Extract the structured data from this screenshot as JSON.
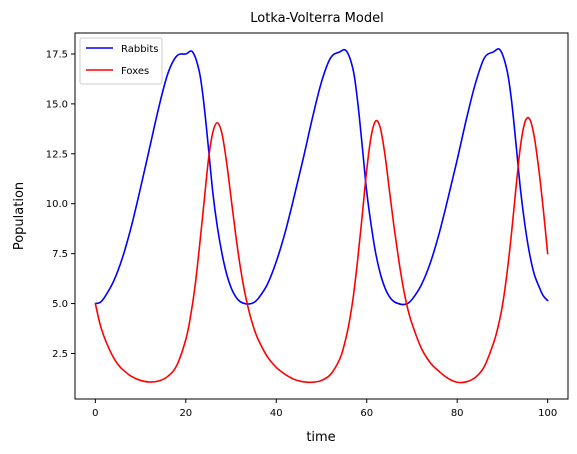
{
  "chart_data": {
    "type": "line",
    "title": "Lotka-Volterra Model",
    "xlabel": "time",
    "ylabel": "Population",
    "xlim": [
      -4.5,
      104.5
    ],
    "ylim": [
      0.22,
      18.55
    ],
    "xticks": [
      0,
      20,
      40,
      60,
      80,
      100
    ],
    "xtick_labels": [
      "0",
      "20",
      "40",
      "60",
      "80",
      "100"
    ],
    "yticks": [
      2.5,
      5.0,
      7.5,
      10.0,
      12.5,
      15.0,
      17.5
    ],
    "ytick_labels": [
      "2.5",
      "5.0",
      "7.5",
      "10.0",
      "12.5",
      "15.0",
      "17.5"
    ],
    "grid": false,
    "legend_position": "top-left",
    "series": [
      {
        "name": "Rabbits",
        "color": "#0000ff",
        "x": [
          0,
          1,
          2,
          4,
          6,
          8,
          10,
          12,
          14,
          16,
          18,
          20,
          21.5,
          23,
          24,
          25,
          26,
          27,
          28,
          29,
          30,
          31,
          32,
          33,
          34,
          35,
          36,
          38,
          40,
          42,
          44,
          46,
          48,
          50,
          52,
          54,
          55.5,
          57,
          58,
          59,
          60,
          61,
          62,
          63,
          64,
          65,
          66,
          67,
          68,
          69,
          70,
          72,
          74,
          76,
          78,
          80,
          82,
          84,
          86,
          88,
          89.5,
          91,
          92,
          93,
          94,
          95,
          96,
          97,
          98,
          99,
          100
        ],
        "y": [
          5.0,
          5.05,
          5.3,
          6.1,
          7.3,
          8.9,
          10.8,
          12.8,
          14.8,
          16.5,
          17.4,
          17.5,
          17.6,
          16.6,
          15.0,
          12.8,
          10.5,
          8.8,
          7.5,
          6.5,
          5.8,
          5.35,
          5.1,
          5.0,
          4.98,
          5.05,
          5.25,
          5.95,
          7.1,
          8.6,
          10.4,
          12.3,
          14.3,
          16.1,
          17.3,
          17.6,
          17.65,
          16.7,
          15.1,
          12.9,
          10.6,
          8.9,
          7.5,
          6.5,
          5.8,
          5.35,
          5.1,
          5.0,
          4.95,
          5.0,
          5.2,
          5.9,
          7.0,
          8.5,
          10.3,
          12.2,
          14.2,
          16.0,
          17.3,
          17.6,
          17.7,
          16.7,
          15.2,
          13.0,
          10.7,
          8.9,
          7.5,
          6.5,
          5.9,
          5.4,
          5.15
        ]
      },
      {
        "name": "Foxes",
        "color": "#ff0000",
        "x": [
          0,
          1,
          2,
          3,
          4,
          5,
          6,
          8,
          10,
          12,
          14,
          16,
          18,
          20,
          21,
          22,
          23,
          24,
          25,
          26,
          27,
          28,
          29,
          30,
          31,
          32,
          33,
          34,
          35,
          36,
          38,
          40,
          42,
          44,
          46,
          48,
          50,
          52,
          54,
          55,
          56,
          57,
          58,
          59,
          60,
          61,
          62,
          63,
          64,
          65,
          66,
          67,
          68,
          69,
          70,
          72,
          74,
          76,
          78,
          80,
          82,
          84,
          86,
          88,
          89,
          90,
          91,
          92,
          93,
          94,
          95,
          96,
          97,
          98,
          99,
          100
        ],
        "y": [
          5.0,
          4.0,
          3.3,
          2.75,
          2.3,
          1.95,
          1.7,
          1.35,
          1.15,
          1.07,
          1.12,
          1.35,
          1.9,
          3.2,
          4.3,
          5.8,
          7.8,
          10.0,
          12.2,
          13.6,
          14.05,
          13.5,
          12.1,
          10.3,
          8.5,
          6.9,
          5.6,
          4.6,
          3.8,
          3.2,
          2.35,
          1.8,
          1.45,
          1.2,
          1.08,
          1.06,
          1.15,
          1.45,
          2.2,
          2.9,
          3.9,
          5.3,
          7.2,
          9.4,
          11.7,
          13.4,
          14.15,
          13.8,
          12.5,
          10.7,
          8.9,
          7.3,
          5.9,
          4.8,
          4.0,
          2.8,
          2.05,
          1.6,
          1.25,
          1.06,
          1.08,
          1.3,
          1.85,
          3.0,
          3.8,
          4.9,
          6.5,
          8.5,
          10.8,
          12.9,
          14.1,
          14.25,
          13.4,
          11.8,
          9.8,
          7.5
        ]
      }
    ]
  }
}
